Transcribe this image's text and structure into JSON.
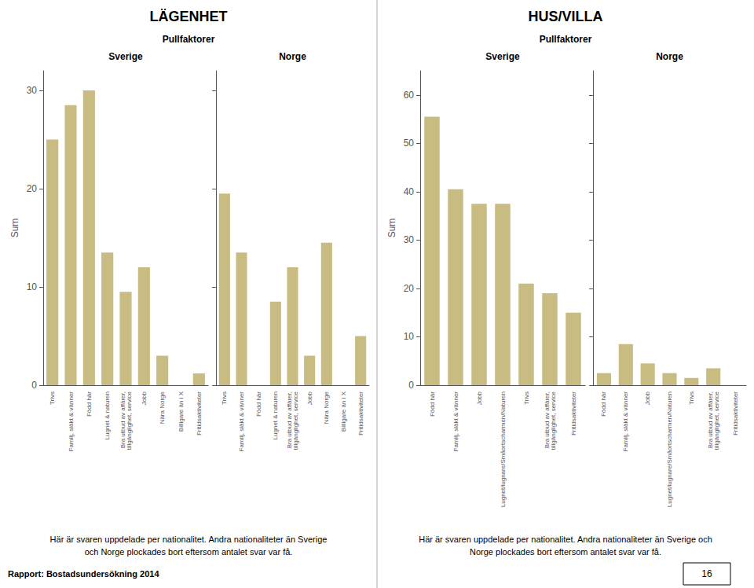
{
  "chart_data": [
    {
      "type": "bar",
      "title": "LÄGENHET",
      "subtitle": "Pullfaktorer",
      "ylabel": "Sum",
      "categories": [
        "Trivs",
        "Familj, släkt & vänner",
        "Född här",
        "Lugnet & naturen",
        "Bra utbud av affärer,\ntillgänglighet, service",
        "Jobb",
        "Nära Norge",
        "Billigare än i X",
        "Fritidsaktiviteter"
      ],
      "series": [
        {
          "name": "Sverige",
          "color": "#c8bc82",
          "values": [
            25,
            28.5,
            30,
            13.5,
            9.5,
            12,
            3,
            0,
            1.2
          ]
        },
        {
          "name": "Norge",
          "color": "#c8bc82",
          "values": [
            19.5,
            13.5,
            0,
            8.5,
            12,
            3,
            14.5,
            0,
            5
          ]
        }
      ],
      "ylim": [
        0,
        32
      ],
      "yticks": [
        0,
        10,
        20,
        30
      ],
      "grid": false,
      "annotations": [
        "Här är svaren uppdelade per nationalitet. Andra nationaliteter än Sverige",
        "och Norge plockades bort eftersom antalet svar var få."
      ]
    },
    {
      "type": "bar",
      "title": "HUS/VILLA",
      "subtitle": "Pullfaktorer",
      "ylabel": "Sum",
      "categories": [
        "Född här",
        "Familj, släkt & vänner",
        "Jobb",
        "Lugnet/lugnare/Småortscharmen/Naturen",
        "Trivs",
        "Bra utbud av affärer,\ntillgänglighet, service",
        "Fritidsaktiviteter"
      ],
      "series": [
        {
          "name": "Sverige",
          "color": "#c8bc82",
          "values": [
            55.5,
            40.5,
            37.5,
            37.5,
            21,
            19,
            15
          ]
        },
        {
          "name": "Norge",
          "color": "#c8bc82",
          "values": [
            2.5,
            8.5,
            4.5,
            2.5,
            1.5,
            3.5,
            0
          ]
        }
      ],
      "ylim": [
        0,
        65
      ],
      "yticks": [
        0,
        10,
        20,
        30,
        40,
        50,
        60
      ],
      "grid": false,
      "annotations": [
        "Här är svaren uppdelade per nationalitet. Andra nationaliteter än Sverige och",
        "Norge plockades bort eftersom antalet svar var få."
      ]
    }
  ],
  "annotations": [
    "Rapport: Bostadsundersökning 2014",
    "16"
  ]
}
